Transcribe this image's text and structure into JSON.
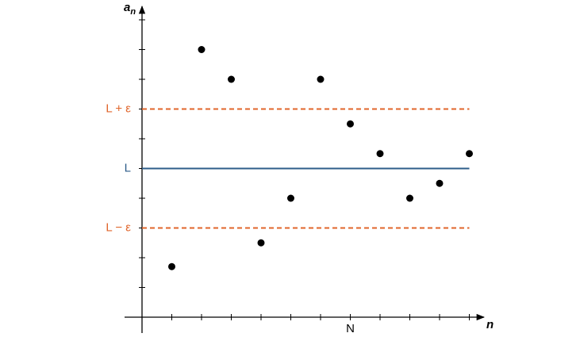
{
  "chart_data": {
    "type": "scatter",
    "x_label": "n",
    "y_label": "a",
    "y_label_sub": "n",
    "x": [
      1,
      2,
      3,
      4,
      5,
      6,
      7,
      8,
      9,
      10,
      11
    ],
    "y": [
      1.7,
      9,
      8,
      2.5,
      4,
      8,
      6.5,
      5.5,
      4,
      4.5,
      5.5
    ],
    "color": "#000000",
    "xlim": [
      0,
      11.5
    ],
    "ylim": [
      0,
      10.4
    ],
    "xticks": [
      1,
      2,
      3,
      4,
      5,
      6,
      7,
      8,
      9,
      10,
      11
    ],
    "yticks": [
      1,
      2,
      3,
      4,
      5,
      6,
      7,
      8,
      9,
      10
    ],
    "hlines": [
      {
        "value": 7,
        "label": "L + ε",
        "style": "dashed",
        "color": "#e0652b"
      },
      {
        "value": 5,
        "label": "L",
        "style": "solid",
        "color": "#2e5d8a"
      },
      {
        "value": 3,
        "label": "L − ε",
        "style": "dashed",
        "color": "#e0652b"
      }
    ],
    "x_annotations": [
      {
        "x": 7,
        "label": "N"
      }
    ]
  }
}
